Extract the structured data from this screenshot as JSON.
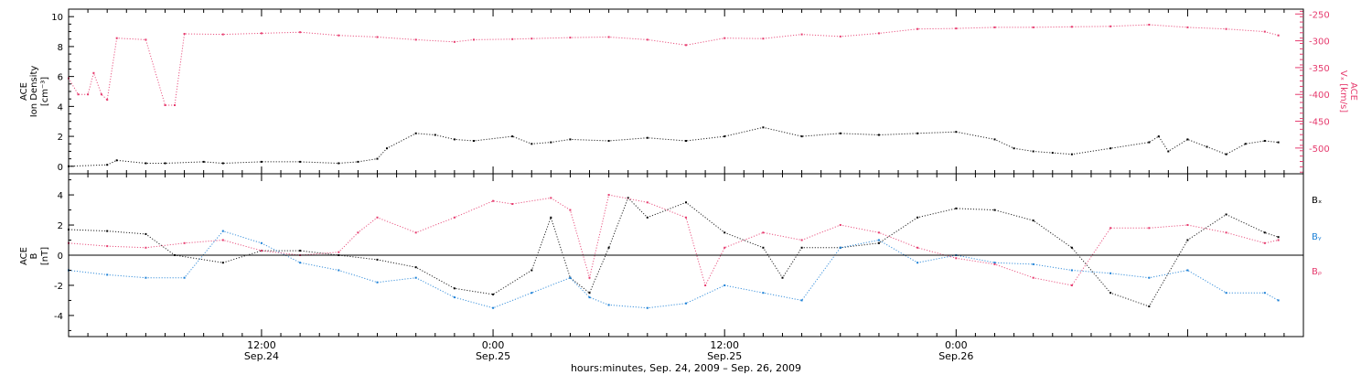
{
  "chart_data": [
    {
      "type": "scatter",
      "panel": "top",
      "x_unit": "hours since 2009-09-24 00:00 UT",
      "xlim": [
        2,
        66
      ],
      "ylabel_left": [
        "ACE",
        "Ion Density",
        "[cm⁻³]"
      ],
      "ylabel_right": [
        "ACE",
        "Vₓ [km/s]"
      ],
      "ylim_left": [
        -0.5,
        10.5
      ],
      "ylim_right": [
        -548,
        -241
      ],
      "left_ticks": [
        0,
        2,
        4,
        6,
        8,
        10
      ],
      "right_ticks": [
        -250,
        -300,
        -350,
        -400,
        -450,
        -500
      ],
      "grid": false,
      "series": [
        {
          "axis": "left",
          "color": "#000000",
          "x": [
            2.0,
            4.0,
            4.5,
            6.0,
            7.0,
            9.0,
            10.0,
            12.0,
            14.0,
            16.0,
            17.0,
            18.0,
            18.5,
            20.0,
            21.0,
            22.0,
            23.0,
            25.0,
            26.0,
            27.0,
            28.0,
            30.0,
            32.0,
            34.0,
            36.0,
            38.0,
            40.0,
            42.0,
            44.0,
            46.0,
            48.0,
            50.0,
            51.0,
            52.0,
            53.0,
            54.0,
            56.0,
            58.0,
            58.5,
            59.0,
            60.0,
            61.0,
            62.0,
            63.0,
            64.0,
            64.7
          ],
          "y": [
            0.0,
            0.1,
            0.4,
            0.2,
            0.2,
            0.3,
            0.2,
            0.3,
            0.3,
            0.2,
            0.3,
            0.5,
            1.2,
            2.2,
            2.1,
            1.8,
            1.7,
            2.0,
            1.5,
            1.6,
            1.8,
            1.7,
            1.9,
            1.7,
            2.0,
            2.6,
            2.0,
            2.2,
            2.1,
            2.2,
            2.3,
            1.8,
            1.2,
            1.0,
            0.9,
            0.8,
            1.2,
            1.6,
            2.0,
            1.0,
            1.8,
            1.3,
            0.8,
            1.5,
            1.7,
            1.6
          ]
        },
        {
          "axis": "right",
          "color": "#e63b6e",
          "x": [
            2.0,
            2.5,
            3.0,
            3.3,
            3.7,
            4.0,
            4.5,
            6.0,
            7.0,
            7.5,
            8.0,
            10.0,
            12.0,
            14.0,
            16.0,
            18.0,
            20.0,
            22.0,
            23.0,
            25.0,
            26.0,
            28.0,
            30.0,
            32.0,
            34.0,
            36.0,
            38.0,
            40.0,
            42.0,
            44.0,
            46.0,
            48.0,
            50.0,
            52.0,
            54.0,
            56.0,
            58.0,
            60.0,
            62.0,
            64.0,
            64.7
          ],
          "y": [
            -370,
            -400,
            -400,
            -360,
            -400,
            -410,
            -295,
            -298,
            -420,
            -420,
            -287,
            -288,
            -286,
            -284,
            -290,
            -293,
            -298,
            -302,
            -298,
            -297,
            -296,
            -294,
            -293,
            -298,
            -308,
            -295,
            -296,
            -288,
            -292,
            -286,
            -278,
            -277,
            -275,
            -275,
            -274,
            -273,
            -270,
            -275,
            -278,
            -283,
            -290
          ]
        }
      ]
    },
    {
      "type": "scatter",
      "panel": "bottom",
      "x_unit": "hours since 2009-09-24 00:00 UT",
      "xlim": [
        2,
        66
      ],
      "ylabel": [
        "ACE",
        "B",
        "[nT]"
      ],
      "ylim": [
        -5.4,
        5.4
      ],
      "ticks": [
        -4,
        -2,
        0,
        2,
        4
      ],
      "zero_line": true,
      "grid": false,
      "legend_position": "right",
      "series": [
        {
          "name": "Bₓ",
          "color": "#000000",
          "x": [
            2.0,
            4.0,
            6.0,
            7.5,
            10.0,
            12.0,
            14.0,
            16.0,
            18.0,
            20.0,
            22.0,
            24.0,
            26.0,
            27.0,
            28.0,
            29.0,
            30.0,
            31.0,
            32.0,
            34.0,
            36.0,
            38.0,
            39.0,
            40.0,
            42.0,
            44.0,
            46.0,
            48.0,
            50.0,
            52.0,
            54.0,
            56.0,
            58.0,
            60.0,
            62.0,
            64.0,
            64.7
          ],
          "y": [
            1.7,
            1.6,
            1.4,
            0.0,
            -0.5,
            0.3,
            0.3,
            0.0,
            -0.3,
            -0.8,
            -2.2,
            -2.6,
            -1.0,
            2.5,
            -1.5,
            -2.5,
            0.5,
            3.8,
            2.5,
            3.5,
            1.5,
            0.5,
            -1.5,
            0.5,
            0.5,
            0.8,
            2.5,
            3.1,
            3.0,
            2.3,
            0.5,
            -2.5,
            -3.4,
            1.0,
            2.7,
            1.5,
            1.2
          ]
        },
        {
          "name": "Bᵧ",
          "color": "#1a7fd6",
          "x": [
            2.0,
            4.0,
            6.0,
            8.0,
            10.0,
            12.0,
            14.0,
            16.0,
            18.0,
            20.0,
            22.0,
            24.0,
            26.0,
            28.0,
            29.0,
            30.0,
            32.0,
            34.0,
            36.0,
            38.0,
            40.0,
            42.0,
            44.0,
            46.0,
            48.0,
            50.0,
            52.0,
            54.0,
            56.0,
            58.0,
            60.0,
            62.0,
            64.0,
            64.7
          ],
          "y": [
            -1.0,
            -1.3,
            -1.5,
            -1.5,
            1.6,
            0.8,
            -0.5,
            -1.0,
            -1.8,
            -1.5,
            -2.8,
            -3.5,
            -2.5,
            -1.5,
            -2.8,
            -3.3,
            -3.5,
            -3.2,
            -2.0,
            -2.5,
            -3.0,
            0.5,
            1.0,
            -0.5,
            0.0,
            -0.5,
            -0.6,
            -1.0,
            -1.2,
            -1.5,
            -1.0,
            -2.5,
            -2.5,
            -3.0
          ]
        },
        {
          "name": "Bᵨ",
          "color": "#e63b6e",
          "x": [
            2.0,
            4.0,
            6.0,
            8.0,
            10.0,
            12.0,
            14.0,
            16.0,
            17.0,
            18.0,
            20.0,
            22.0,
            24.0,
            25.0,
            27.0,
            28.0,
            29.0,
            30.0,
            32.0,
            34.0,
            35.0,
            36.0,
            38.0,
            40.0,
            42.0,
            44.0,
            46.0,
            48.0,
            50.0,
            52.0,
            54.0,
            56.0,
            58.0,
            60.0,
            62.0,
            64.0,
            64.7
          ],
          "y": [
            0.8,
            0.6,
            0.5,
            0.8,
            1.0,
            0.3,
            0.0,
            0.2,
            1.5,
            2.5,
            1.5,
            2.5,
            3.6,
            3.4,
            3.8,
            3.0,
            -1.5,
            4.0,
            3.5,
            2.5,
            -2.0,
            0.5,
            1.5,
            1.0,
            2.0,
            1.5,
            0.5,
            -0.2,
            -0.6,
            -1.5,
            -2.0,
            1.8,
            1.8,
            2.0,
            1.5,
            0.8,
            1.0
          ]
        }
      ]
    }
  ],
  "x_ticks": [
    {
      "x": 12,
      "time": "12:00",
      "date": "Sep.24"
    },
    {
      "x": 24,
      "time": "0:00",
      "date": "Sep.25"
    },
    {
      "x": 36,
      "time": "12:00",
      "date": "Sep.25"
    },
    {
      "x": 48,
      "time": "0:00",
      "date": "Sep.26"
    }
  ],
  "x_title": "hours:minutes, Sep. 24, 2009 – Sep. 26, 2009"
}
